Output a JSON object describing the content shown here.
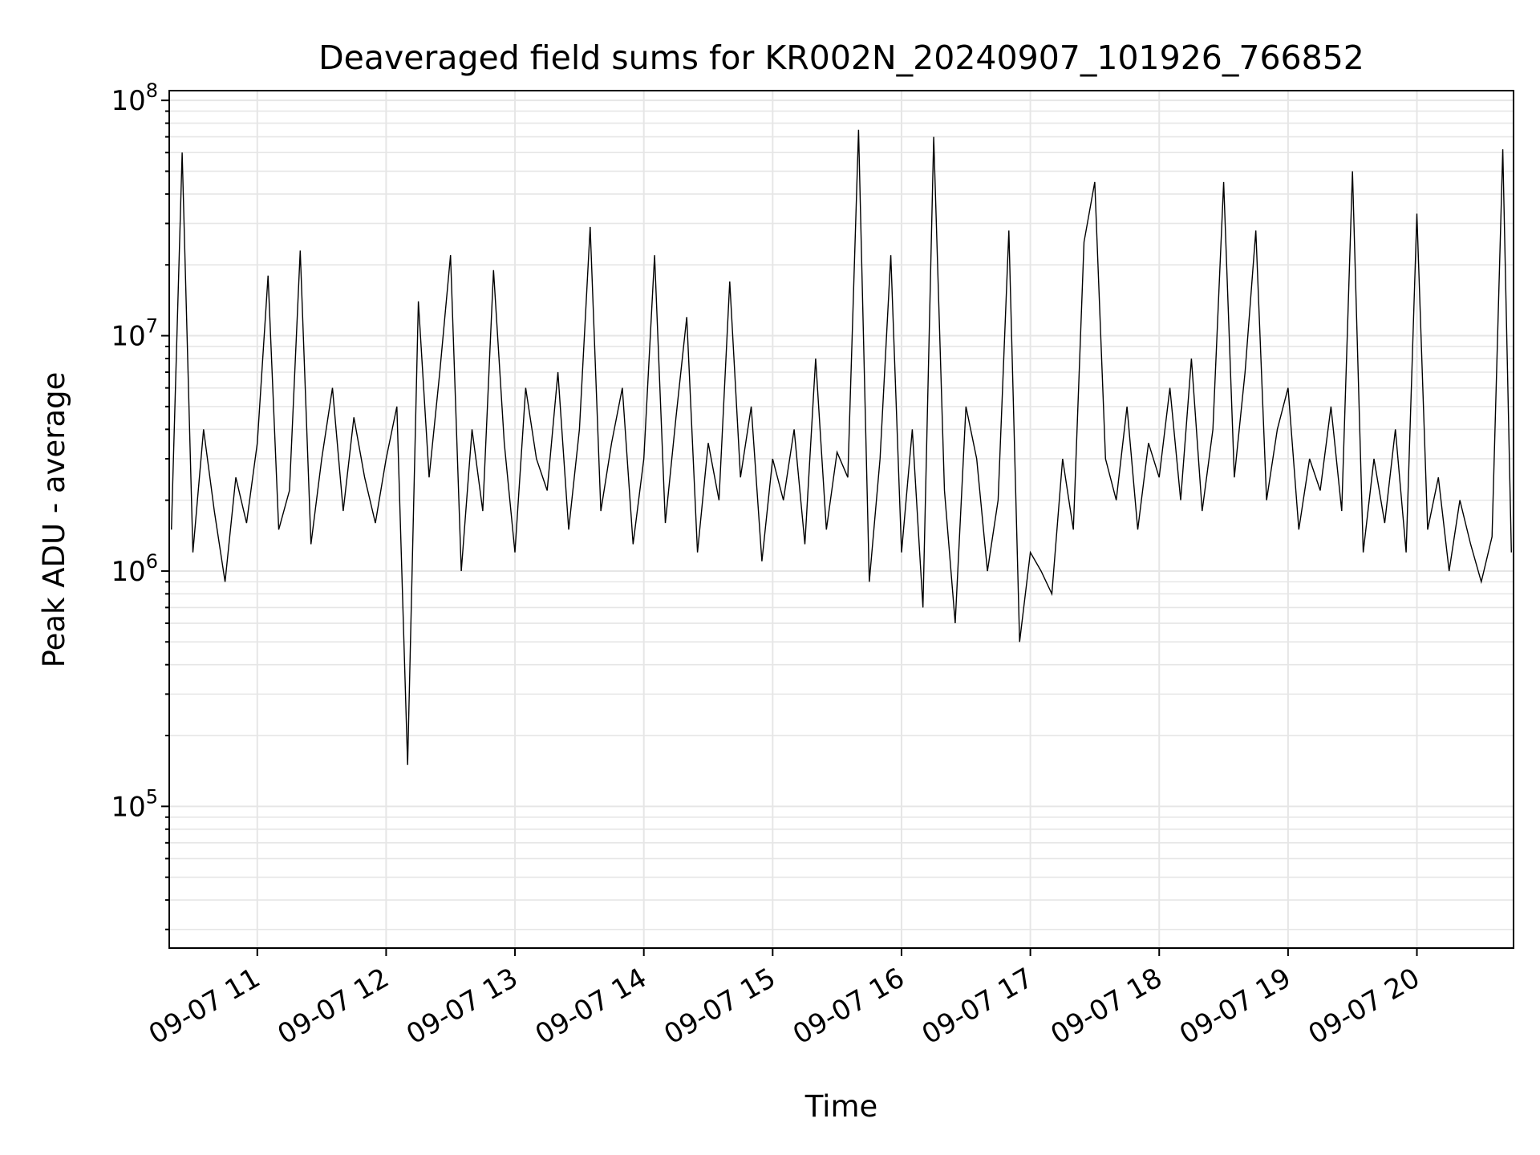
{
  "chart_data": {
    "type": "line",
    "title": "Deaveraged field sums for KR002N_20240907_101926_766852",
    "xlabel": "Time",
    "ylabel": "Peak ADU - average",
    "y_scale": "log",
    "ylim": [
      25000,
      110000000
    ],
    "xlim": [
      "2024-09-07 10:19",
      "2024-09-07 20:45"
    ],
    "x_ticks": [
      "09-07 11",
      "09-07 12",
      "09-07 13",
      "09-07 14",
      "09-07 15",
      "09-07 16",
      "09-07 17",
      "09-07 18",
      "09-07 19",
      "09-07 20"
    ],
    "y_ticks": [
      {
        "base": "10",
        "exp": "5",
        "value": 100000
      },
      {
        "base": "10",
        "exp": "6",
        "value": 1000000
      },
      {
        "base": "10",
        "exp": "7",
        "value": 10000000
      },
      {
        "base": "10",
        "exp": "8",
        "value": 100000000
      }
    ],
    "grid": true,
    "line_color": "#000000",
    "grid_color": "#e6e6e6",
    "series": [
      {
        "x": [
          "2024-09-07 10:20",
          "2024-09-07 10:25",
          "2024-09-07 10:30",
          "2024-09-07 10:35",
          "2024-09-07 10:40",
          "2024-09-07 10:45",
          "2024-09-07 10:50",
          "2024-09-07 10:55",
          "2024-09-07 11:00",
          "2024-09-07 11:05",
          "2024-09-07 11:10",
          "2024-09-07 11:15",
          "2024-09-07 11:20",
          "2024-09-07 11:25",
          "2024-09-07 11:30",
          "2024-09-07 11:35",
          "2024-09-07 11:40",
          "2024-09-07 11:45",
          "2024-09-07 11:50",
          "2024-09-07 11:55",
          "2024-09-07 12:00",
          "2024-09-07 12:05",
          "2024-09-07 12:10",
          "2024-09-07 12:15",
          "2024-09-07 12:20",
          "2024-09-07 12:25",
          "2024-09-07 12:30",
          "2024-09-07 12:35",
          "2024-09-07 12:40",
          "2024-09-07 12:45",
          "2024-09-07 12:50",
          "2024-09-07 12:55",
          "2024-09-07 13:00",
          "2024-09-07 13:05",
          "2024-09-07 13:10",
          "2024-09-07 13:15",
          "2024-09-07 13:20",
          "2024-09-07 13:25",
          "2024-09-07 13:30",
          "2024-09-07 13:35",
          "2024-09-07 13:40",
          "2024-09-07 13:45",
          "2024-09-07 13:50",
          "2024-09-07 13:55",
          "2024-09-07 14:00",
          "2024-09-07 14:05",
          "2024-09-07 14:10",
          "2024-09-07 14:15",
          "2024-09-07 14:20",
          "2024-09-07 14:25",
          "2024-09-07 14:30",
          "2024-09-07 14:35",
          "2024-09-07 14:40",
          "2024-09-07 14:45",
          "2024-09-07 14:50",
          "2024-09-07 14:55",
          "2024-09-07 15:00",
          "2024-09-07 15:05",
          "2024-09-07 15:10",
          "2024-09-07 15:15",
          "2024-09-07 15:20",
          "2024-09-07 15:25",
          "2024-09-07 15:30",
          "2024-09-07 15:35",
          "2024-09-07 15:40",
          "2024-09-07 15:45",
          "2024-09-07 15:50",
          "2024-09-07 15:55",
          "2024-09-07 16:00",
          "2024-09-07 16:05",
          "2024-09-07 16:10",
          "2024-09-07 16:15",
          "2024-09-07 16:20",
          "2024-09-07 16:25",
          "2024-09-07 16:30",
          "2024-09-07 16:35",
          "2024-09-07 16:40",
          "2024-09-07 16:45",
          "2024-09-07 16:50",
          "2024-09-07 16:55",
          "2024-09-07 17:00",
          "2024-09-07 17:05",
          "2024-09-07 17:10",
          "2024-09-07 17:15",
          "2024-09-07 17:20",
          "2024-09-07 17:25",
          "2024-09-07 17:30",
          "2024-09-07 17:35",
          "2024-09-07 17:40",
          "2024-09-07 17:45",
          "2024-09-07 17:50",
          "2024-09-07 17:55",
          "2024-09-07 18:00",
          "2024-09-07 18:05",
          "2024-09-07 18:10",
          "2024-09-07 18:15",
          "2024-09-07 18:20",
          "2024-09-07 18:25",
          "2024-09-07 18:30",
          "2024-09-07 18:35",
          "2024-09-07 18:40",
          "2024-09-07 18:45",
          "2024-09-07 18:50",
          "2024-09-07 18:55",
          "2024-09-07 19:00",
          "2024-09-07 19:05",
          "2024-09-07 19:10",
          "2024-09-07 19:15",
          "2024-09-07 19:20",
          "2024-09-07 19:25",
          "2024-09-07 19:30",
          "2024-09-07 19:35",
          "2024-09-07 19:40",
          "2024-09-07 19:45",
          "2024-09-07 19:50",
          "2024-09-07 19:55",
          "2024-09-07 20:00",
          "2024-09-07 20:05",
          "2024-09-07 20:10",
          "2024-09-07 20:15",
          "2024-09-07 20:20",
          "2024-09-07 20:25",
          "2024-09-07 20:30",
          "2024-09-07 20:35",
          "2024-09-07 20:40",
          "2024-09-07 20:44"
        ],
        "values": [
          1500000,
          60000000,
          1200000,
          4000000,
          1800000,
          900000,
          2500000,
          1600000,
          3500000,
          18000000,
          1500000,
          2200000,
          23000000,
          1300000,
          3000000,
          6000000,
          1800000,
          4500000,
          2500000,
          1600000,
          3000000,
          5000000,
          150000,
          14000000,
          2500000,
          7000000,
          22000000,
          1000000,
          4000000,
          1800000,
          19000000,
          3500000,
          1200000,
          6000000,
          3000000,
          2200000,
          7000000,
          1500000,
          4000000,
          29000000,
          1800000,
          3500000,
          6000000,
          1300000,
          3000000,
          22000000,
          1600000,
          4500000,
          12000000,
          1200000,
          3500000,
          2000000,
          17000000,
          2500000,
          5000000,
          1100000,
          3000000,
          2000000,
          4000000,
          1300000,
          8000000,
          1500000,
          3200000,
          2500000,
          75000000,
          900000,
          3000000,
          22000000,
          1200000,
          4000000,
          700000,
          70000000,
          2200000,
          600000,
          5000000,
          3000000,
          1000000,
          2000000,
          28000000,
          500000,
          1200000,
          1000000,
          800000,
          3000000,
          1500000,
          25000000,
          45000000,
          3000000,
          2000000,
          5000000,
          1500000,
          3500000,
          2500000,
          6000000,
          2000000,
          8000000,
          1800000,
          4000000,
          45000000,
          2500000,
          7000000,
          28000000,
          2000000,
          4000000,
          6000000,
          1500000,
          3000000,
          2200000,
          5000000,
          1800000,
          50000000,
          1200000,
          3000000,
          1600000,
          4000000,
          1200000,
          33000000,
          1500000,
          2500000,
          1000000,
          2000000,
          1300000,
          900000,
          1400000,
          62000000,
          1200000
        ]
      }
    ]
  }
}
